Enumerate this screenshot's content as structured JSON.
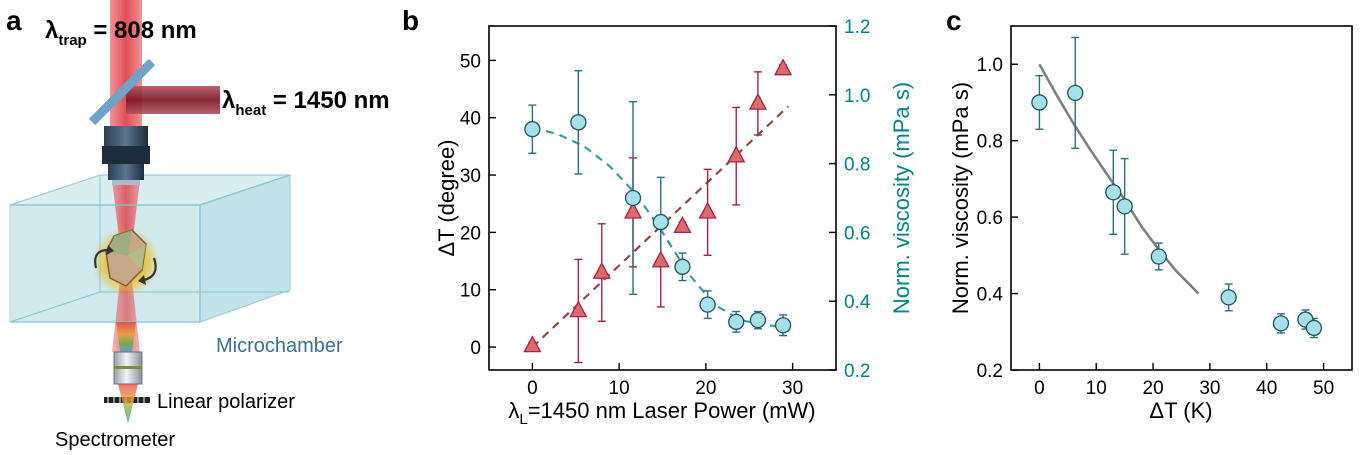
{
  "panels": {
    "a": {
      "letter": "a",
      "trap_label": "λ",
      "trap_sub": "trap",
      "trap_value": " = 808 nm",
      "heat_label": "λ",
      "heat_sub": "heat",
      "heat_value": " = 1450 nm",
      "microchamber_label": "Microchamber",
      "polarizer_label": "Linear polarizer",
      "spectrometer_label": "Spectrometer",
      "colors": {
        "trap_beam": "#d9303a",
        "heat_beam": "#8a1a24",
        "chamber": "#a8d8e0",
        "particle": "#f4b400"
      }
    },
    "b": {
      "letter": "b"
    },
    "c": {
      "letter": "c"
    }
  },
  "chart_data": [
    {
      "id": "b",
      "type": "scatter",
      "xlabel_prefix": "λ",
      "xlabel_sub": "L",
      "xlabel_rest": "=1450 nm Laser Power (mW)",
      "ylabel": "ΔT (degree)",
      "y2label": "Norm. viscosity (mPa s)",
      "xlim": [
        -5,
        35
      ],
      "ylim": [
        -4,
        56
      ],
      "y2lim": [
        0.2,
        1.2
      ],
      "xticks": [
        0,
        10,
        20,
        30
      ],
      "yticks": [
        0,
        10,
        20,
        30,
        40,
        50
      ],
      "y2ticks": [
        "0.2",
        "0.4",
        "0.6",
        "0.8",
        "1.0",
        "1.2"
      ],
      "colors": {
        "temperature": "#e06a6a",
        "viscosity": "#a6e0ea",
        "temp_fit": "#8b4a4a",
        "visc_fit": "#3f9a9a",
        "right_axis": "#00838a"
      },
      "series": [
        {
          "axis": "left",
          "marker": "triangle",
          "x": [
            0,
            5.3,
            8.0,
            11.6,
            14.8,
            17.3,
            20.2,
            23.5,
            26.0,
            28.9
          ],
          "y": [
            0.2,
            6.3,
            13.0,
            23.5,
            15.0,
            21.0,
            23.5,
            33.3,
            42.5,
            48.5
          ],
          "err": [
            0.6,
            9.0,
            8.5,
            9.5,
            8.0,
            0.8,
            7.5,
            8.5,
            5.5,
            0.7
          ]
        },
        {
          "axis": "right",
          "marker": "circle",
          "x": [
            0,
            5.3,
            11.6,
            14.8,
            17.3,
            20.2,
            23.5,
            26.0,
            28.9
          ],
          "y": [
            0.9,
            0.92,
            0.7,
            0.63,
            0.5,
            0.39,
            0.34,
            0.345,
            0.33
          ],
          "err": [
            0.07,
            0.15,
            0.28,
            0.13,
            0.04,
            0.04,
            0.03,
            0.025,
            0.03
          ]
        },
        {
          "axis": "left",
          "type": "line",
          "style": "dashed",
          "x": [
            0,
            29.5
          ],
          "y": [
            0.0,
            42.0
          ]
        },
        {
          "axis": "right",
          "type": "line",
          "style": "dashed",
          "x": [
            0,
            3,
            6,
            9,
            12,
            15,
            18,
            21,
            24,
            27,
            29.5
          ],
          "y": [
            0.905,
            0.885,
            0.85,
            0.79,
            0.71,
            0.6,
            0.48,
            0.39,
            0.345,
            0.33,
            0.325
          ]
        }
      ]
    },
    {
      "id": "c",
      "type": "scatter",
      "xlabel": "ΔT (K)",
      "ylabel": "Norm. viscosity (mPa s)",
      "xlim": [
        -5,
        55
      ],
      "ylim": [
        0.2,
        1.1
      ],
      "xticks": [
        0,
        10,
        20,
        30,
        40,
        50
      ],
      "yticks": [
        "0.2",
        "0.4",
        "0.6",
        "0.8",
        "1.0"
      ],
      "colors": {
        "points": "#a6e0ea",
        "fit": "#808080"
      },
      "series": [
        {
          "marker": "circle",
          "x": [
            0,
            6.3,
            13.0,
            15.0,
            21.0,
            33.3,
            42.5,
            46.8,
            48.3
          ],
          "y": [
            0.9,
            0.925,
            0.665,
            0.628,
            0.497,
            0.39,
            0.322,
            0.332,
            0.31
          ],
          "err": [
            0.07,
            0.145,
            0.11,
            0.125,
            0.035,
            0.035,
            0.025,
            0.025,
            0.025
          ]
        },
        {
          "type": "line",
          "style": "solid",
          "x": [
            0,
            3,
            6,
            9,
            12,
            15,
            18,
            21,
            24,
            27,
            28
          ],
          "y": [
            1.0,
            0.92,
            0.845,
            0.775,
            0.71,
            0.645,
            0.575,
            0.515,
            0.46,
            0.415,
            0.4
          ]
        }
      ]
    }
  ]
}
